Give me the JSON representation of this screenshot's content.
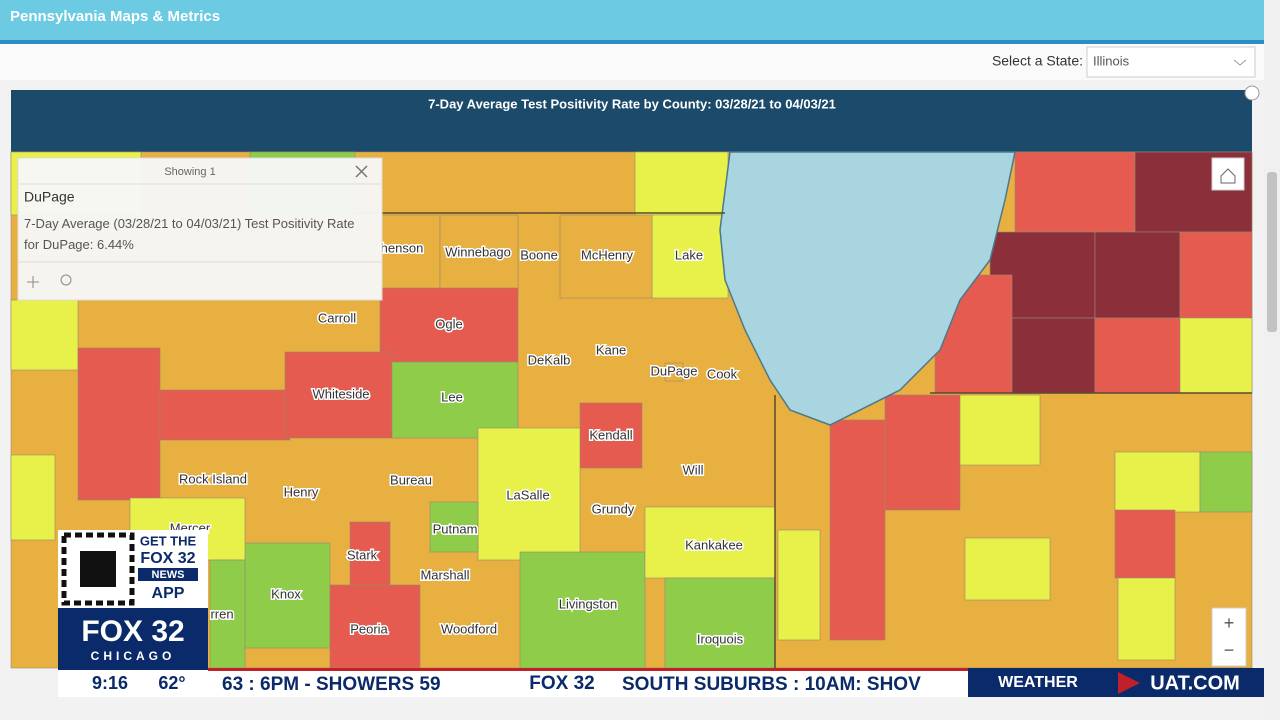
{
  "header": {
    "title": "Pennsylvania Maps & Metrics"
  },
  "state_select": {
    "label": "Select a State:",
    "value": "Illinois"
  },
  "map": {
    "title": "7-Day Average Test Positivity Rate by County: 03/28/21 to 04/03/21",
    "counties": [
      "henson",
      "Winnebago",
      "Boone",
      "McHenry",
      "Lake",
      "Carroll",
      "Ogle",
      "DeKalb",
      "Kane",
      "DuPage",
      "Cook",
      "Whiteside",
      "Lee",
      "Kendall",
      "Rock Island",
      "Henry",
      "Bureau",
      "LaSalle",
      "Will",
      "Grundy",
      "Putnam",
      "Mercer",
      "Stark",
      "Marshall",
      "Kankakee",
      "Knox",
      "rren",
      "Livingston",
      "Peoria",
      "Woodford",
      "Iroquois"
    ],
    "zoom_in": "+",
    "zoom_out": "−"
  },
  "popup": {
    "count": "Showing 1",
    "name": "DuPage",
    "body": "7-Day Average (03/28/21 to 04/03/21) Test Positivity Rate for DuPage: 6.44%"
  },
  "broadcast": {
    "promo": [
      "GET THE",
      "FOX 32",
      "NEWS",
      "APP"
    ],
    "logo": "FOX 32",
    "city": "CHICAGO",
    "time": "9:16",
    "temp": "62°",
    "ticker": [
      "63 : 6PM - SHOWERS 59",
      "FOX 32",
      "SOUTH SUBURBS : 10AM: SHOV"
    ],
    "weather": "WEATHER",
    "site": "UAT.COM"
  }
}
